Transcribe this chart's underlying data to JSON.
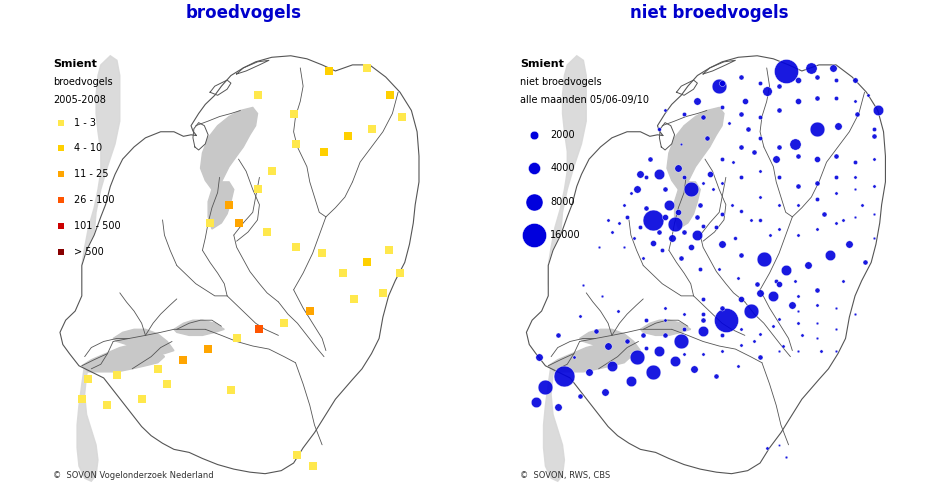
{
  "title_left": "broedvogels",
  "title_right": "niet broedvogels",
  "title_color": "#0000cc",
  "background_color": "#ffffff",
  "border_color": "#555555",
  "shadow_color": "#d8d8d8",
  "water_color": "#c8c8c8",
  "left_legend_title": "Smient",
  "left_legend_sub1": "broedvogels",
  "left_legend_sub2": "2005-2008",
  "left_legend_items": [
    {
      "label": "1 - 3",
      "color": "#FFE84C"
    },
    {
      "label": "4 - 10",
      "color": "#FFD000"
    },
    {
      "label": "11 - 25",
      "color": "#FFA500"
    },
    {
      "label": "26 - 100",
      "color": "#FF5500"
    },
    {
      "label": "101 - 500",
      "color": "#CC0000"
    },
    {
      "label": "> 500",
      "color": "#880000"
    }
  ],
  "right_legend_title": "Smient",
  "right_legend_sub1": "niet broedvogels",
  "right_legend_sub2": "alle maanden 05/06-09/10",
  "right_legend_items": [
    {
      "label": "2000",
      "ref_val": 2000
    },
    {
      "label": "4000",
      "ref_val": 4000
    },
    {
      "label": "8000",
      "ref_val": 8000
    },
    {
      "label": "16000",
      "ref_val": 16000
    }
  ],
  "circle_color": "#0000dd",
  "left_credit": "©  SOVON Vogelonderzoek Nederland",
  "right_credit": "©  SOVON, RWS, CBS",
  "xlim": [
    3.2,
    7.3
  ],
  "ylim": [
    50.65,
    53.7
  ],
  "broedvogels_points": [
    {
      "lon": 5.4,
      "lat": 53.22,
      "cat": 0
    },
    {
      "lon": 5.78,
      "lat": 53.1,
      "cat": 0
    },
    {
      "lon": 6.15,
      "lat": 53.38,
      "cat": 1
    },
    {
      "lon": 6.55,
      "lat": 53.4,
      "cat": 0
    },
    {
      "lon": 6.8,
      "lat": 53.22,
      "cat": 1
    },
    {
      "lon": 6.92,
      "lat": 53.08,
      "cat": 0
    },
    {
      "lon": 6.6,
      "lat": 53.0,
      "cat": 0
    },
    {
      "lon": 6.35,
      "lat": 52.95,
      "cat": 1
    },
    {
      "lon": 6.1,
      "lat": 52.85,
      "cat": 1
    },
    {
      "lon": 5.8,
      "lat": 52.9,
      "cat": 0
    },
    {
      "lon": 5.55,
      "lat": 52.72,
      "cat": 0
    },
    {
      "lon": 5.4,
      "lat": 52.6,
      "cat": 0
    },
    {
      "lon": 5.1,
      "lat": 52.5,
      "cat": 2
    },
    {
      "lon": 4.9,
      "lat": 52.38,
      "cat": 0
    },
    {
      "lon": 5.2,
      "lat": 52.38,
      "cat": 2
    },
    {
      "lon": 5.5,
      "lat": 52.32,
      "cat": 0
    },
    {
      "lon": 5.8,
      "lat": 52.22,
      "cat": 0
    },
    {
      "lon": 6.08,
      "lat": 52.18,
      "cat": 0
    },
    {
      "lon": 6.3,
      "lat": 52.05,
      "cat": 0
    },
    {
      "lon": 6.55,
      "lat": 52.12,
      "cat": 1
    },
    {
      "lon": 6.78,
      "lat": 52.2,
      "cat": 0
    },
    {
      "lon": 6.9,
      "lat": 52.05,
      "cat": 0
    },
    {
      "lon": 6.72,
      "lat": 51.92,
      "cat": 0
    },
    {
      "lon": 6.42,
      "lat": 51.88,
      "cat": 0
    },
    {
      "lon": 5.95,
      "lat": 51.8,
      "cat": 2
    },
    {
      "lon": 5.68,
      "lat": 51.72,
      "cat": 0
    },
    {
      "lon": 5.42,
      "lat": 51.68,
      "cat": 3
    },
    {
      "lon": 5.18,
      "lat": 51.62,
      "cat": 0
    },
    {
      "lon": 4.88,
      "lat": 51.55,
      "cat": 2
    },
    {
      "lon": 4.62,
      "lat": 51.48,
      "cat": 2
    },
    {
      "lon": 4.35,
      "lat": 51.42,
      "cat": 0
    },
    {
      "lon": 3.92,
      "lat": 51.38,
      "cat": 0
    },
    {
      "lon": 3.62,
      "lat": 51.35,
      "cat": 0
    },
    {
      "lon": 3.55,
      "lat": 51.22,
      "cat": 0
    },
    {
      "lon": 3.82,
      "lat": 51.18,
      "cat": 0
    },
    {
      "lon": 4.18,
      "lat": 51.22,
      "cat": 0
    },
    {
      "lon": 4.45,
      "lat": 51.32,
      "cat": 0
    },
    {
      "lon": 5.12,
      "lat": 51.28,
      "cat": 0
    },
    {
      "lon": 5.82,
      "lat": 50.85,
      "cat": 0
    },
    {
      "lon": 5.98,
      "lat": 50.78,
      "cat": 0
    }
  ],
  "niet_broedvogels_points": [
    {
      "lon": 4.72,
      "lat": 53.0,
      "val": 400
    },
    {
      "lon": 4.95,
      "lat": 52.9,
      "val": 200
    },
    {
      "lon": 5.12,
      "lat": 53.18,
      "val": 1500
    },
    {
      "lon": 5.35,
      "lat": 53.28,
      "val": 6000
    },
    {
      "lon": 5.62,
      "lat": 53.18,
      "val": 1000
    },
    {
      "lon": 5.85,
      "lat": 53.25,
      "val": 2500
    },
    {
      "lon": 6.05,
      "lat": 53.38,
      "val": 16000
    },
    {
      "lon": 6.32,
      "lat": 53.4,
      "val": 3500
    },
    {
      "lon": 6.55,
      "lat": 53.4,
      "val": 1500
    },
    {
      "lon": 6.78,
      "lat": 53.32,
      "val": 800
    },
    {
      "lon": 6.92,
      "lat": 53.22,
      "val": 300
    },
    {
      "lon": 7.02,
      "lat": 53.12,
      "val": 3000
    },
    {
      "lon": 6.8,
      "lat": 53.1,
      "val": 700
    },
    {
      "lon": 6.6,
      "lat": 53.02,
      "val": 1500
    },
    {
      "lon": 6.38,
      "lat": 53.0,
      "val": 6000
    },
    {
      "lon": 6.15,
      "lat": 52.9,
      "val": 3500
    },
    {
      "lon": 5.95,
      "lat": 52.8,
      "val": 1500
    },
    {
      "lon": 5.72,
      "lat": 52.85,
      "val": 700
    },
    {
      "lon": 5.5,
      "lat": 52.78,
      "val": 300
    },
    {
      "lon": 5.25,
      "lat": 52.7,
      "val": 1000
    },
    {
      "lon": 5.05,
      "lat": 52.6,
      "val": 6000
    },
    {
      "lon": 4.82,
      "lat": 52.5,
      "val": 3000
    },
    {
      "lon": 4.65,
      "lat": 52.4,
      "val": 12000
    },
    {
      "lon": 4.88,
      "lat": 52.37,
      "val": 6000
    },
    {
      "lon": 5.12,
      "lat": 52.3,
      "val": 3000
    },
    {
      "lon": 5.38,
      "lat": 52.24,
      "val": 1500
    },
    {
      "lon": 5.58,
      "lat": 52.17,
      "val": 700
    },
    {
      "lon": 5.82,
      "lat": 52.14,
      "val": 6000
    },
    {
      "lon": 6.05,
      "lat": 52.07,
      "val": 3000
    },
    {
      "lon": 6.28,
      "lat": 52.1,
      "val": 1500
    },
    {
      "lon": 6.52,
      "lat": 52.17,
      "val": 3000
    },
    {
      "lon": 6.72,
      "lat": 52.24,
      "val": 1500
    },
    {
      "lon": 6.88,
      "lat": 52.12,
      "val": 700
    },
    {
      "lon": 6.65,
      "lat": 52.0,
      "val": 300
    },
    {
      "lon": 6.38,
      "lat": 51.94,
      "val": 700
    },
    {
      "lon": 6.12,
      "lat": 51.84,
      "val": 1500
    },
    {
      "lon": 5.92,
      "lat": 51.9,
      "val": 3000
    },
    {
      "lon": 5.68,
      "lat": 51.8,
      "val": 6000
    },
    {
      "lon": 5.42,
      "lat": 51.74,
      "val": 16000
    },
    {
      "lon": 5.18,
      "lat": 51.67,
      "val": 3000
    },
    {
      "lon": 4.95,
      "lat": 51.6,
      "val": 6000
    },
    {
      "lon": 4.72,
      "lat": 51.54,
      "val": 3000
    },
    {
      "lon": 4.48,
      "lat": 51.5,
      "val": 6000
    },
    {
      "lon": 4.22,
      "lat": 51.44,
      "val": 3000
    },
    {
      "lon": 3.98,
      "lat": 51.4,
      "val": 1500
    },
    {
      "lon": 3.72,
      "lat": 51.37,
      "val": 12000
    },
    {
      "lon": 3.52,
      "lat": 51.3,
      "val": 6000
    },
    {
      "lon": 3.42,
      "lat": 51.2,
      "val": 3000
    },
    {
      "lon": 3.65,
      "lat": 51.17,
      "val": 1500
    },
    {
      "lon": 3.88,
      "lat": 51.24,
      "val": 700
    },
    {
      "lon": 4.15,
      "lat": 51.27,
      "val": 1500
    },
    {
      "lon": 4.42,
      "lat": 51.34,
      "val": 3000
    },
    {
      "lon": 4.65,
      "lat": 51.4,
      "val": 6000
    },
    {
      "lon": 4.88,
      "lat": 51.47,
      "val": 3000
    },
    {
      "lon": 5.08,
      "lat": 51.42,
      "val": 1500
    },
    {
      "lon": 5.32,
      "lat": 51.37,
      "val": 700
    },
    {
      "lon": 5.55,
      "lat": 51.44,
      "val": 300
    },
    {
      "lon": 5.78,
      "lat": 51.5,
      "val": 700
    },
    {
      "lon": 6.02,
      "lat": 51.57,
      "val": 300
    },
    {
      "lon": 5.85,
      "lat": 50.9,
      "val": 300
    },
    {
      "lon": 6.05,
      "lat": 50.84,
      "val": 200
    },
    {
      "lon": 4.18,
      "lat": 51.57,
      "val": 1500
    },
    {
      "lon": 4.05,
      "lat": 51.67,
      "val": 700
    },
    {
      "lon": 3.88,
      "lat": 51.77,
      "val": 300
    },
    {
      "lon": 3.65,
      "lat": 51.64,
      "val": 700
    },
    {
      "lon": 3.45,
      "lat": 51.5,
      "val": 1500
    },
    {
      "lon": 4.52,
      "lat": 52.7,
      "val": 1500
    },
    {
      "lon": 4.72,
      "lat": 52.7,
      "val": 3000
    },
    {
      "lon": 4.92,
      "lat": 52.74,
      "val": 1500
    },
    {
      "lon": 5.15,
      "lat": 52.5,
      "val": 700
    },
    {
      "lon": 4.48,
      "lat": 52.6,
      "val": 1500
    },
    {
      "lon": 4.62,
      "lat": 52.8,
      "val": 700
    },
    {
      "lon": 5.28,
      "lat": 52.6,
      "val": 300
    },
    {
      "lon": 5.48,
      "lat": 52.5,
      "val": 300
    },
    {
      "lon": 5.68,
      "lat": 52.4,
      "val": 300
    },
    {
      "lon": 5.88,
      "lat": 52.3,
      "val": 300
    },
    {
      "lon": 4.35,
      "lat": 52.5,
      "val": 300
    },
    {
      "lon": 4.18,
      "lat": 52.4,
      "val": 300
    },
    {
      "lon": 6.45,
      "lat": 52.44,
      "val": 700
    },
    {
      "lon": 6.65,
      "lat": 52.4,
      "val": 300
    },
    {
      "lon": 6.85,
      "lat": 52.5,
      "val": 300
    },
    {
      "lon": 5.22,
      "lat": 52.94,
      "val": 700
    },
    {
      "lon": 5.45,
      "lat": 53.04,
      "val": 300
    },
    {
      "lon": 5.65,
      "lat": 53.0,
      "val": 700
    },
    {
      "lon": 4.55,
      "lat": 51.64,
      "val": 700
    },
    {
      "lon": 4.78,
      "lat": 51.74,
      "val": 300
    },
    {
      "lon": 3.82,
      "lat": 51.5,
      "val": 300
    },
    {
      "lon": 5.72,
      "lat": 51.6,
      "val": 300
    },
    {
      "lon": 5.92,
      "lat": 51.7,
      "val": 300
    },
    {
      "lon": 6.22,
      "lat": 51.64,
      "val": 300
    },
    {
      "lon": 6.42,
      "lat": 51.54,
      "val": 300
    },
    {
      "lon": 4.28,
      "lat": 51.8,
      "val": 300
    },
    {
      "lon": 4.12,
      "lat": 51.9,
      "val": 200
    },
    {
      "lon": 3.92,
      "lat": 51.97,
      "val": 200
    },
    {
      "lon": 5.98,
      "lat": 50.92,
      "val": 150
    },
    {
      "lon": 4.35,
      "lat": 52.22,
      "val": 200
    },
    {
      "lon": 4.55,
      "lat": 52.15,
      "val": 300
    },
    {
      "lon": 4.75,
      "lat": 52.2,
      "val": 500
    },
    {
      "lon": 4.95,
      "lat": 52.15,
      "val": 700
    },
    {
      "lon": 5.15,
      "lat": 52.08,
      "val": 500
    },
    {
      "lon": 4.45,
      "lat": 52.28,
      "val": 300
    },
    {
      "lon": 4.3,
      "lat": 52.38,
      "val": 300
    },
    {
      "lon": 5.35,
      "lat": 52.08,
      "val": 300
    },
    {
      "lon": 5.55,
      "lat": 52.02,
      "val": 300
    },
    {
      "lon": 5.75,
      "lat": 51.98,
      "val": 700
    },
    {
      "lon": 5.95,
      "lat": 52.0,
      "val": 500
    },
    {
      "lon": 6.15,
      "lat": 52.0,
      "val": 300
    },
    {
      "lon": 4.65,
      "lat": 52.25,
      "val": 1000
    },
    {
      "lon": 4.85,
      "lat": 52.28,
      "val": 1500
    },
    {
      "lon": 5.05,
      "lat": 52.22,
      "val": 1000
    },
    {
      "lon": 4.52,
      "lat": 52.35,
      "val": 500
    },
    {
      "lon": 4.72,
      "lat": 52.32,
      "val": 700
    },
    {
      "lon": 4.92,
      "lat": 52.45,
      "val": 1000
    },
    {
      "lon": 5.12,
      "lat": 52.42,
      "val": 700
    },
    {
      "lon": 5.32,
      "lat": 52.35,
      "val": 500
    },
    {
      "lon": 5.52,
      "lat": 52.28,
      "val": 400
    },
    {
      "lon": 5.18,
      "lat": 51.88,
      "val": 500
    },
    {
      "lon": 5.38,
      "lat": 51.82,
      "val": 700
    },
    {
      "lon": 5.58,
      "lat": 51.88,
      "val": 1000
    },
    {
      "lon": 5.78,
      "lat": 51.92,
      "val": 1500
    },
    {
      "lon": 5.98,
      "lat": 51.98,
      "val": 1000
    },
    {
      "lon": 4.98,
      "lat": 51.78,
      "val": 300
    },
    {
      "lon": 5.18,
      "lat": 51.78,
      "val": 500
    },
    {
      "lon": 4.78,
      "lat": 51.82,
      "val": 300
    },
    {
      "lon": 4.58,
      "lat": 51.74,
      "val": 500
    },
    {
      "lon": 4.38,
      "lat": 51.6,
      "val": 700
    },
    {
      "lon": 4.58,
      "lat": 51.56,
      "val": 500
    },
    {
      "lon": 4.78,
      "lat": 51.64,
      "val": 700
    },
    {
      "lon": 4.98,
      "lat": 51.68,
      "val": 500
    },
    {
      "lon": 5.18,
      "lat": 51.74,
      "val": 700
    },
    {
      "lon": 5.38,
      "lat": 51.64,
      "val": 500
    },
    {
      "lon": 5.58,
      "lat": 51.58,
      "val": 300
    },
    {
      "lon": 5.38,
      "lat": 51.54,
      "val": 300
    },
    {
      "lon": 5.18,
      "lat": 51.52,
      "val": 300
    },
    {
      "lon": 4.98,
      "lat": 51.52,
      "val": 300
    },
    {
      "lon": 6.18,
      "lat": 51.72,
      "val": 300
    },
    {
      "lon": 6.38,
      "lat": 51.72,
      "val": 200
    },
    {
      "lon": 6.58,
      "lat": 51.68,
      "val": 200
    },
    {
      "lon": 6.78,
      "lat": 51.78,
      "val": 200
    },
    {
      "lon": 6.58,
      "lat": 51.82,
      "val": 200
    },
    {
      "lon": 6.38,
      "lat": 51.84,
      "val": 300
    },
    {
      "lon": 6.18,
      "lat": 51.9,
      "val": 300
    },
    {
      "lon": 5.78,
      "lat": 51.65,
      "val": 300
    },
    {
      "lon": 5.98,
      "lat": 51.75,
      "val": 300
    },
    {
      "lon": 6.18,
      "lat": 51.8,
      "val": 200
    },
    {
      "lon": 5.58,
      "lat": 51.68,
      "val": 300
    },
    {
      "lon": 5.98,
      "lat": 51.54,
      "val": 200
    },
    {
      "lon": 6.18,
      "lat": 51.54,
      "val": 200
    },
    {
      "lon": 6.38,
      "lat": 51.62,
      "val": 200
    },
    {
      "lon": 6.58,
      "lat": 51.54,
      "val": 200
    },
    {
      "lon": 5.78,
      "lat": 52.55,
      "val": 300
    },
    {
      "lon": 5.98,
      "lat": 52.5,
      "val": 300
    },
    {
      "lon": 6.18,
      "lat": 52.5,
      "val": 300
    },
    {
      "lon": 6.38,
      "lat": 52.54,
      "val": 500
    },
    {
      "lon": 6.58,
      "lat": 52.58,
      "val": 300
    },
    {
      "lon": 6.78,
      "lat": 52.6,
      "val": 200
    },
    {
      "lon": 6.78,
      "lat": 52.42,
      "val": 200
    },
    {
      "lon": 6.58,
      "lat": 52.38,
      "val": 300
    },
    {
      "lon": 6.38,
      "lat": 52.34,
      "val": 300
    },
    {
      "lon": 6.18,
      "lat": 52.3,
      "val": 300
    },
    {
      "lon": 5.98,
      "lat": 52.34,
      "val": 300
    },
    {
      "lon": 5.78,
      "lat": 52.4,
      "val": 400
    },
    {
      "lon": 5.58,
      "lat": 52.46,
      "val": 400
    },
    {
      "lon": 5.38,
      "lat": 52.44,
      "val": 500
    },
    {
      "lon": 5.18,
      "lat": 52.36,
      "val": 500
    },
    {
      "lon": 4.98,
      "lat": 52.32,
      "val": 700
    },
    {
      "lon": 4.78,
      "lat": 52.42,
      "val": 1000
    },
    {
      "lon": 4.58,
      "lat": 52.48,
      "val": 700
    },
    {
      "lon": 4.38,
      "lat": 52.42,
      "val": 500
    },
    {
      "lon": 4.22,
      "lat": 52.32,
      "val": 300
    },
    {
      "lon": 4.08,
      "lat": 52.22,
      "val": 200
    },
    {
      "lon": 5.38,
      "lat": 52.8,
      "val": 500
    },
    {
      "lon": 5.58,
      "lat": 52.88,
      "val": 700
    },
    {
      "lon": 5.78,
      "lat": 52.94,
      "val": 500
    },
    {
      "lon": 5.98,
      "lat": 52.88,
      "val": 700
    },
    {
      "lon": 6.18,
      "lat": 52.82,
      "val": 700
    },
    {
      "lon": 6.38,
      "lat": 52.8,
      "val": 1000
    },
    {
      "lon": 6.58,
      "lat": 52.82,
      "val": 700
    },
    {
      "lon": 6.78,
      "lat": 52.78,
      "val": 500
    },
    {
      "lon": 6.98,
      "lat": 52.8,
      "val": 300
    },
    {
      "lon": 6.98,
      "lat": 52.62,
      "val": 300
    },
    {
      "lon": 6.98,
      "lat": 52.44,
      "val": 200
    },
    {
      "lon": 6.98,
      "lat": 52.28,
      "val": 200
    },
    {
      "lon": 5.38,
      "lat": 52.64,
      "val": 300
    },
    {
      "lon": 5.58,
      "lat": 52.68,
      "val": 500
    },
    {
      "lon": 5.78,
      "lat": 52.72,
      "val": 300
    },
    {
      "lon": 5.98,
      "lat": 52.68,
      "val": 500
    },
    {
      "lon": 6.18,
      "lat": 52.62,
      "val": 700
    },
    {
      "lon": 6.38,
      "lat": 52.64,
      "val": 700
    },
    {
      "lon": 6.58,
      "lat": 52.68,
      "val": 500
    },
    {
      "lon": 6.78,
      "lat": 52.68,
      "val": 300
    },
    {
      "lon": 5.18,
      "lat": 52.64,
      "val": 300
    },
    {
      "lon": 4.98,
      "lat": 52.68,
      "val": 500
    },
    {
      "lon": 4.78,
      "lat": 52.6,
      "val": 700
    },
    {
      "lon": 4.58,
      "lat": 52.68,
      "val": 500
    },
    {
      "lon": 4.42,
      "lat": 52.58,
      "val": 300
    },
    {
      "lon": 5.18,
      "lat": 53.08,
      "val": 700
    },
    {
      "lon": 5.38,
      "lat": 53.14,
      "val": 500
    },
    {
      "lon": 5.58,
      "lat": 53.1,
      "val": 700
    },
    {
      "lon": 5.78,
      "lat": 53.08,
      "val": 500
    },
    {
      "lon": 5.98,
      "lat": 53.12,
      "val": 700
    },
    {
      "lon": 6.18,
      "lat": 53.18,
      "val": 1000
    },
    {
      "lon": 6.38,
      "lat": 53.2,
      "val": 700
    },
    {
      "lon": 6.58,
      "lat": 53.2,
      "val": 500
    },
    {
      "lon": 6.78,
      "lat": 53.18,
      "val": 300
    },
    {
      "lon": 6.98,
      "lat": 53.0,
      "val": 500
    },
    {
      "lon": 6.98,
      "lat": 52.95,
      "val": 700
    },
    {
      "lon": 5.38,
      "lat": 53.3,
      "val": 1000
    },
    {
      "lon": 5.58,
      "lat": 53.34,
      "val": 700
    },
    {
      "lon": 5.78,
      "lat": 53.3,
      "val": 500
    },
    {
      "lon": 5.98,
      "lat": 53.28,
      "val": 700
    },
    {
      "lon": 6.18,
      "lat": 53.32,
      "val": 1000
    },
    {
      "lon": 6.38,
      "lat": 53.34,
      "val": 700
    },
    {
      "lon": 6.58,
      "lat": 53.32,
      "val": 500
    },
    {
      "lon": 4.98,
      "lat": 53.1,
      "val": 500
    },
    {
      "lon": 4.78,
      "lat": 53.12,
      "val": 300
    }
  ]
}
